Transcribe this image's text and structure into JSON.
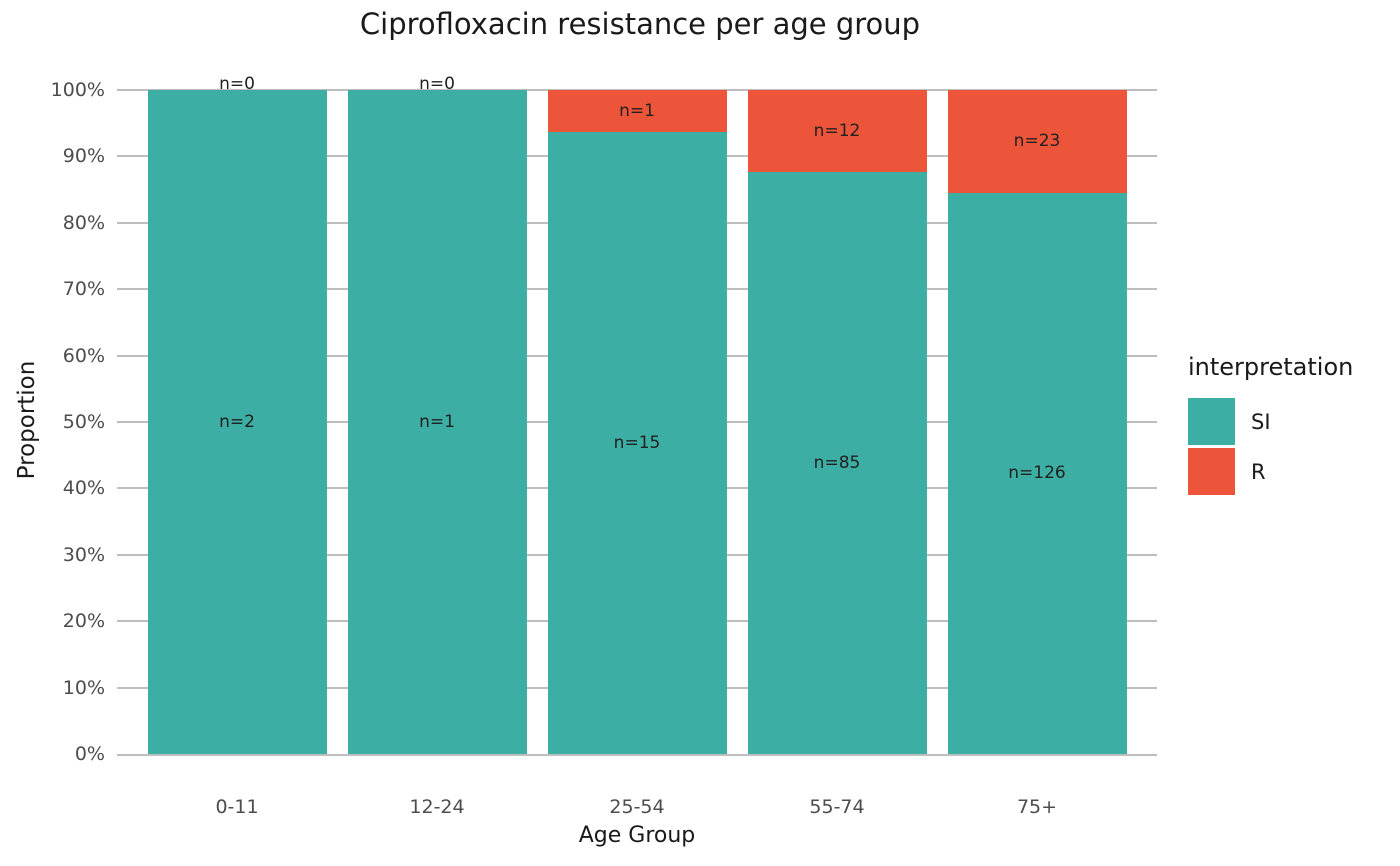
{
  "title": "Ciprofloxacin resistance per age group",
  "chart_data": {
    "type": "bar",
    "stacked": true,
    "normalized": "percent",
    "title": "Ciprofloxacin resistance per age group",
    "xlabel": "Age Group",
    "ylabel": "Proportion",
    "categories": [
      "0-11",
      "12-24",
      "25-54",
      "55-74",
      "75+"
    ],
    "series": [
      {
        "name": "SI",
        "color": "#3CAEA3",
        "counts": [
          2,
          1,
          15,
          85,
          126
        ],
        "labels": [
          "n=2",
          "n=1",
          "n=15",
          "n=85",
          "n=126"
        ],
        "proportion_percent": [
          100,
          100,
          93.75,
          87.63,
          84.56
        ]
      },
      {
        "name": "R",
        "color": "#ED553B",
        "counts": [
          0,
          0,
          1,
          12,
          23
        ],
        "labels": [
          "n=0",
          "n=0",
          "n=1",
          "n=12",
          "n=23"
        ],
        "proportion_percent": [
          0,
          0,
          6.25,
          12.37,
          15.44
        ]
      }
    ],
    "y_ticks": [
      "0%",
      "10%",
      "20%",
      "30%",
      "40%",
      "50%",
      "60%",
      "70%",
      "80%",
      "90%",
      "100%"
    ],
    "ylim": [
      "0%",
      "100%"
    ],
    "grid": true,
    "legend": {
      "title": "interpretation",
      "position": "right",
      "entries": [
        {
          "label": "SI",
          "color": "#3CAEA3"
        },
        {
          "label": "R",
          "color": "#ED553B"
        }
      ]
    }
  },
  "colors": {
    "si": "#3CAEA3",
    "r": "#ED553B",
    "grid": "#BEBEBE",
    "axis_text": "#4D4D4D",
    "text": "#1A1A1A",
    "background": "#FFFFFF"
  }
}
